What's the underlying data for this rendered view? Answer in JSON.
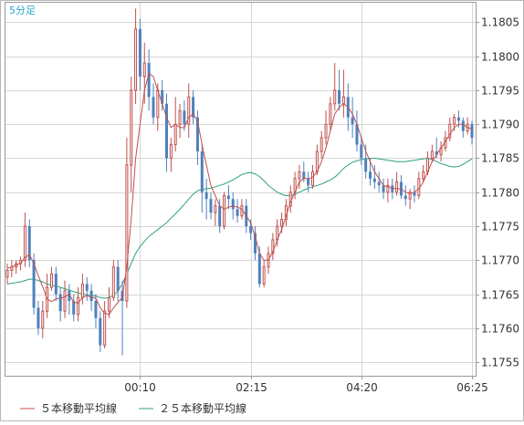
{
  "chart_data": {
    "type": "candlestick",
    "timeframe_label": "5分足",
    "x_tick_labels": [
      "00:10",
      "02:15",
      "04:20",
      "06:25"
    ],
    "y_ticks": [
      "1.1755",
      "1.1760",
      "1.1765",
      "1.1770",
      "1.1775",
      "1.1780",
      "1.1785",
      "1.1790",
      "1.1795",
      "1.1800",
      "1.1805"
    ],
    "ylim": [
      1.1753,
      1.1808
    ],
    "grid": true,
    "legend_position": "bottom-left",
    "up_color": "#c0504d",
    "down_color": "#4f81bd",
    "ma5_color": "#c0504d",
    "ma25_color": "#2ea37a",
    "legend": [
      {
        "label": "５本移動平均線",
        "color": "#c0504d"
      },
      {
        "label": "２５本移動平均線",
        "color": "#2ea37a"
      }
    ],
    "candles": [
      [
        1.17675,
        1.17695,
        1.17665,
        1.17685
      ],
      [
        1.17685,
        1.177,
        1.17675,
        1.1769
      ],
      [
        1.1769,
        1.177,
        1.1768,
        1.17695
      ],
      [
        1.17695,
        1.17705,
        1.17685,
        1.177
      ],
      [
        1.177,
        1.1777,
        1.1769,
        1.1775
      ],
      [
        1.1775,
        1.1776,
        1.1769,
        1.177
      ],
      [
        1.177,
        1.1771,
        1.1762,
        1.1763
      ],
      [
        1.1763,
        1.1764,
        1.1759,
        1.176
      ],
      [
        1.176,
        1.1764,
        1.17585,
        1.17625
      ],
      [
        1.17625,
        1.1768,
        1.17615,
        1.1766
      ],
      [
        1.1766,
        1.1769,
        1.17655,
        1.1768
      ],
      [
        1.1768,
        1.1769,
        1.1764,
        1.1765
      ],
      [
        1.1765,
        1.1766,
        1.1761,
        1.17625
      ],
      [
        1.17625,
        1.1767,
        1.17615,
        1.17655
      ],
      [
        1.17655,
        1.17665,
        1.1762,
        1.1764
      ],
      [
        1.1764,
        1.1765,
        1.1761,
        1.1762
      ],
      [
        1.1762,
        1.1766,
        1.1761,
        1.17645
      ],
      [
        1.17645,
        1.1768,
        1.17635,
        1.17665
      ],
      [
        1.17665,
        1.17675,
        1.1764,
        1.17655
      ],
      [
        1.17655,
        1.17665,
        1.17625,
        1.1764
      ],
      [
        1.1764,
        1.1765,
        1.176,
        1.17615
      ],
      [
        1.17615,
        1.17625,
        1.17565,
        1.17575
      ],
      [
        1.17575,
        1.1764,
        1.1757,
        1.17625
      ],
      [
        1.17625,
        1.1766,
        1.17615,
        1.17645
      ],
      [
        1.17645,
        1.177,
        1.1764,
        1.1769
      ],
      [
        1.1769,
        1.177,
        1.1764,
        1.17655
      ],
      [
        1.17655,
        1.1767,
        1.1756,
        1.1764
      ],
      [
        1.1764,
        1.1788,
        1.1763,
        1.1784
      ],
      [
        1.1784,
        1.1797,
        1.178,
        1.1795
      ],
      [
        1.1795,
        1.1807,
        1.1793,
        1.1804
      ],
      [
        1.1804,
        1.18055,
        1.1795,
        1.1797
      ],
      [
        1.1797,
        1.1802,
        1.1793,
        1.1799
      ],
      [
        1.1799,
        1.1801,
        1.1792,
        1.1794
      ],
      [
        1.1794,
        1.1796,
        1.179,
        1.1791
      ],
      [
        1.1791,
        1.1796,
        1.1789,
        1.1795
      ],
      [
        1.1795,
        1.17965,
        1.1792,
        1.1793
      ],
      [
        1.1793,
        1.17945,
        1.1783,
        1.1785
      ],
      [
        1.1785,
        1.1788,
        1.1783,
        1.1787
      ],
      [
        1.1787,
        1.1794,
        1.1786,
        1.179
      ],
      [
        1.179,
        1.1793,
        1.1788,
        1.1792
      ],
      [
        1.1792,
        1.17935,
        1.1789,
        1.179
      ],
      [
        1.179,
        1.1796,
        1.1788,
        1.1794
      ],
      [
        1.1794,
        1.1795,
        1.179,
        1.1791
      ],
      [
        1.1791,
        1.1792,
        1.1784,
        1.1786
      ],
      [
        1.1786,
        1.1787,
        1.1777,
        1.178
      ],
      [
        1.178,
        1.1782,
        1.1776,
        1.1779
      ],
      [
        1.1779,
        1.178,
        1.1776,
        1.1777
      ],
      [
        1.1777,
        1.1779,
        1.1775,
        1.1778
      ],
      [
        1.1778,
        1.1779,
        1.1774,
        1.1775
      ],
      [
        1.1775,
        1.178,
        1.17745,
        1.17795
      ],
      [
        1.17795,
        1.1781,
        1.17775,
        1.1779
      ],
      [
        1.1779,
        1.178,
        1.1776,
        1.17775
      ],
      [
        1.17775,
        1.1779,
        1.17755,
        1.17765
      ],
      [
        1.17765,
        1.1779,
        1.1776,
        1.1778
      ],
      [
        1.1778,
        1.1779,
        1.1774,
        1.1775
      ],
      [
        1.1775,
        1.1776,
        1.1773,
        1.1774
      ],
      [
        1.1774,
        1.1775,
        1.177,
        1.1771
      ],
      [
        1.1771,
        1.1772,
        1.1766,
        1.17665
      ],
      [
        1.17665,
        1.177,
        1.1766,
        1.1769
      ],
      [
        1.1769,
        1.1772,
        1.1768,
        1.1771
      ],
      [
        1.1771,
        1.1774,
        1.177,
        1.1773
      ],
      [
        1.1773,
        1.1776,
        1.1772,
        1.1775
      ],
      [
        1.1775,
        1.1777,
        1.1774,
        1.1776
      ],
      [
        1.1776,
        1.1779,
        1.1775,
        1.1778
      ],
      [
        1.1778,
        1.1781,
        1.1777,
        1.178
      ],
      [
        1.178,
        1.1783,
        1.1779,
        1.1782
      ],
      [
        1.1782,
        1.1784,
        1.17805,
        1.1783
      ],
      [
        1.1783,
        1.17845,
        1.17815,
        1.1782
      ],
      [
        1.1782,
        1.1783,
        1.178,
        1.1781
      ],
      [
        1.1781,
        1.1784,
        1.17805,
        1.1783
      ],
      [
        1.1783,
        1.1787,
        1.17825,
        1.1786
      ],
      [
        1.1786,
        1.1789,
        1.1785,
        1.1788
      ],
      [
        1.1788,
        1.1792,
        1.1787,
        1.179
      ],
      [
        1.179,
        1.1794,
        1.1789,
        1.1793
      ],
      [
        1.1793,
        1.1799,
        1.1792,
        1.1795
      ],
      [
        1.1795,
        1.1798,
        1.1792,
        1.1793
      ],
      [
        1.1793,
        1.1798,
        1.1791,
        1.1794
      ],
      [
        1.1794,
        1.1796,
        1.1789,
        1.1791
      ],
      [
        1.1791,
        1.1794,
        1.1788,
        1.179
      ],
      [
        1.179,
        1.1792,
        1.1786,
        1.1787
      ],
      [
        1.1787,
        1.1788,
        1.1784,
        1.1785
      ],
      [
        1.1785,
        1.1787,
        1.1782,
        1.1783
      ],
      [
        1.1783,
        1.1785,
        1.1781,
        1.1782
      ],
      [
        1.1782,
        1.1784,
        1.17805,
        1.17815
      ],
      [
        1.17815,
        1.1783,
        1.178,
        1.1781
      ],
      [
        1.1781,
        1.1782,
        1.1779,
        1.178
      ],
      [
        1.178,
        1.1782,
        1.17785,
        1.1781
      ],
      [
        1.1781,
        1.1782,
        1.1779,
        1.178
      ],
      [
        1.178,
        1.1783,
        1.17795,
        1.17815
      ],
      [
        1.17815,
        1.17825,
        1.1779,
        1.17795
      ],
      [
        1.17795,
        1.1781,
        1.1778,
        1.1779
      ],
      [
        1.1779,
        1.17805,
        1.17775,
        1.178
      ],
      [
        1.178,
        1.1781,
        1.17785,
        1.17795
      ],
      [
        1.17795,
        1.1783,
        1.1779,
        1.1782
      ],
      [
        1.1782,
        1.1784,
        1.17815,
        1.1783
      ],
      [
        1.1783,
        1.1786,
        1.17825,
        1.1785
      ],
      [
        1.1785,
        1.1787,
        1.17845,
        1.1786
      ],
      [
        1.1786,
        1.1788,
        1.1785,
        1.17855
      ],
      [
        1.17855,
        1.17875,
        1.17845,
        1.17865
      ],
      [
        1.17865,
        1.1789,
        1.1786,
        1.1788
      ],
      [
        1.1788,
        1.1791,
        1.17875,
        1.179
      ],
      [
        1.179,
        1.17915,
        1.1789,
        1.1791
      ],
      [
        1.1791,
        1.1792,
        1.17895,
        1.17905
      ],
      [
        1.17905,
        1.1791,
        1.1788,
        1.1789
      ],
      [
        1.1789,
        1.1791,
        1.17885,
        1.179
      ],
      [
        1.179,
        1.17905,
        1.1787,
        1.1788
      ]
    ],
    "ma5": [
      1.17688,
      1.1769,
      1.17693,
      1.17695,
      1.17704,
      1.17708,
      1.17695,
      1.17677,
      1.17661,
      1.17643,
      1.17639,
      1.17643,
      1.17644,
      1.17646,
      1.1765,
      1.17638,
      1.17637,
      1.17645,
      1.17648,
      1.17645,
      1.17644,
      1.1763,
      1.17622,
      1.1762,
      1.1763,
      1.17638,
      1.17645,
      1.1769,
      1.1776,
      1.1785,
      1.179,
      1.1795,
      1.17975,
      1.1797,
      1.1795,
      1.1793,
      1.1791,
      1.17895,
      1.179,
      1.17895,
      1.17895,
      1.1791,
      1.17915,
      1.17905,
      1.1787,
      1.1784,
      1.1781,
      1.17795,
      1.1778,
      1.17775,
      1.17778,
      1.1778,
      1.17778,
      1.17775,
      1.17765,
      1.17755,
      1.17735,
      1.1771,
      1.177,
      1.177,
      1.17712,
      1.1773,
      1.17745,
      1.17765,
      1.17785,
      1.178,
      1.17815,
      1.1782,
      1.1782,
      1.17822,
      1.1783,
      1.17845,
      1.17865,
      1.1789,
      1.17915,
      1.17925,
      1.1793,
      1.17925,
      1.17915,
      1.179,
      1.1788,
      1.1786,
      1.17845,
      1.1783,
      1.1782,
      1.1781,
      1.17808,
      1.17806,
      1.17805,
      1.17805,
      1.178,
      1.17798,
      1.178,
      1.17805,
      1.17815,
      1.1783,
      1.17845,
      1.17855,
      1.17865,
      1.17875,
      1.17885,
      1.17895,
      1.179,
      1.179,
      1.17895,
      1.17893
    ],
    "ma25": [
      1.17665,
      1.17666,
      1.17667,
      1.17668,
      1.1767,
      1.17672,
      1.17672,
      1.1767,
      1.17668,
      1.17665,
      1.17663,
      1.17662,
      1.1766,
      1.17658,
      1.17656,
      1.17654,
      1.17652,
      1.1765,
      1.17649,
      1.17648,
      1.17647,
      1.17645,
      1.17644,
      1.17645,
      1.17648,
      1.17655,
      1.17665,
      1.1768,
      1.17695,
      1.1771,
      1.1772,
      1.17728,
      1.17735,
      1.1774,
      1.17745,
      1.1775,
      1.17755,
      1.17762,
      1.17768,
      1.17775,
      1.17782,
      1.1779,
      1.17797,
      1.17802,
      1.17804,
      1.17805,
      1.17806,
      1.17808,
      1.1781,
      1.17812,
      1.17815,
      1.17818,
      1.17822,
      1.17826,
      1.17828,
      1.17829,
      1.17827,
      1.17823,
      1.17817,
      1.1781,
      1.17805,
      1.178,
      1.17797,
      1.17795,
      1.17795,
      1.17797,
      1.178,
      1.17803,
      1.17806,
      1.17808,
      1.1781,
      1.17812,
      1.17815,
      1.17818,
      1.17822,
      1.17828,
      1.17835,
      1.1784,
      1.17844,
      1.17846,
      1.17848,
      1.17849,
      1.1785,
      1.1785,
      1.17849,
      1.17848,
      1.17847,
      1.17846,
      1.17845,
      1.17845,
      1.17845,
      1.17846,
      1.17847,
      1.17848,
      1.17849,
      1.1785,
      1.17848,
      1.17845,
      1.17842,
      1.1784,
      1.17838,
      1.17837,
      1.17838,
      1.17841,
      1.17845,
      1.17849
    ]
  }
}
